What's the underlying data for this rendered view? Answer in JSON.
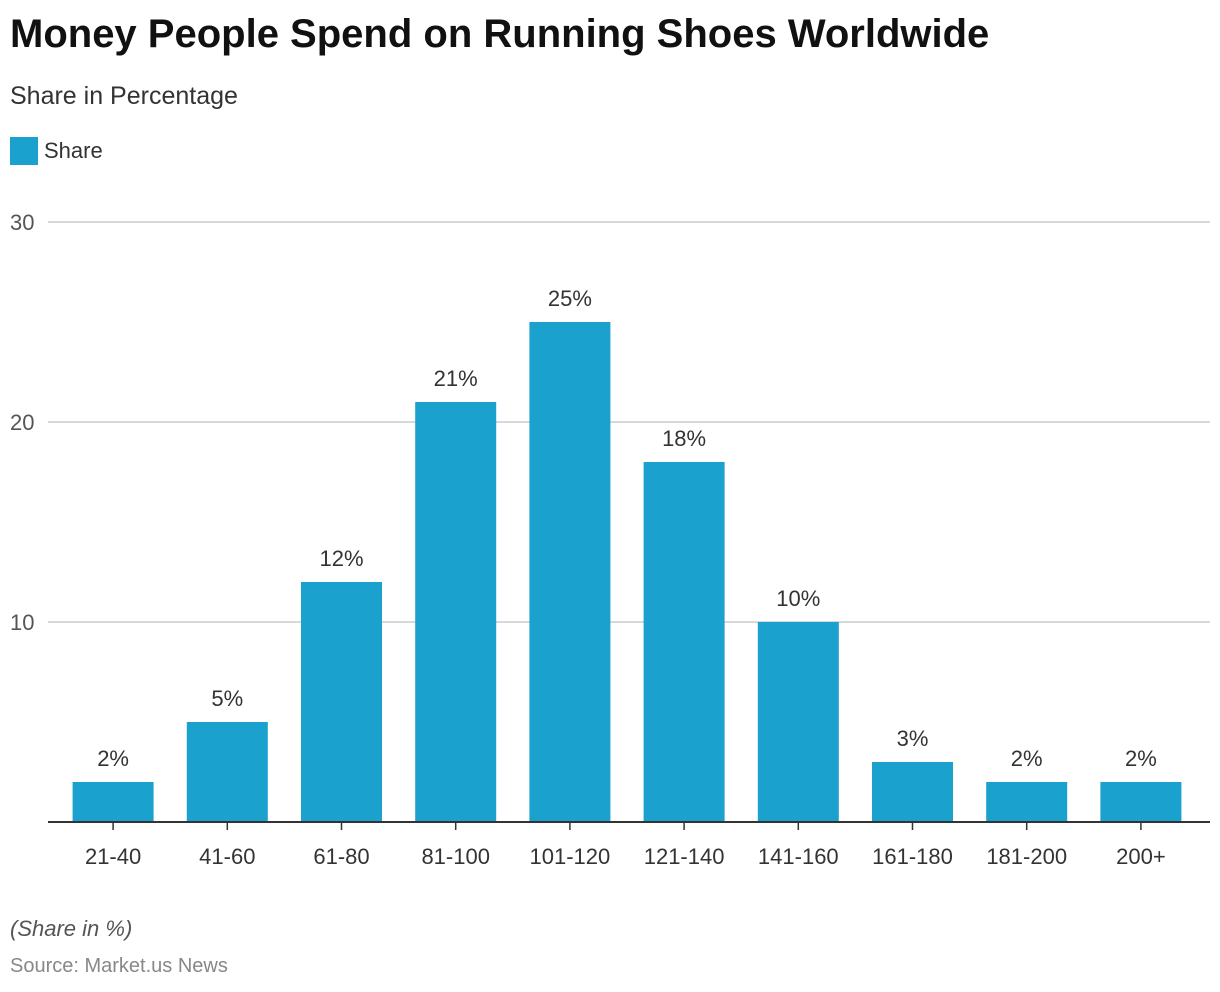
{
  "title": "Money People Spend on Running Shoes Worldwide",
  "subtitle": "Share in Percentage",
  "note": "(Share in %)",
  "source": "Source: Market.us News",
  "colors": {
    "bar": "#1aa1cd",
    "grid": "#cccccc",
    "axis": "#333333"
  },
  "chart_data": {
    "type": "bar",
    "title": "Money People Spend on Running Shoes Worldwide",
    "subtitle": "Share in Percentage",
    "categories": [
      "21-40",
      "41-60",
      "61-80",
      "81-100",
      "101-120",
      "121-140",
      "141-160",
      "161-180",
      "181-200",
      "200+"
    ],
    "series": [
      {
        "name": "Share",
        "values": [
          2,
          5,
          12,
          21,
          25,
          18,
          10,
          3,
          2,
          2
        ]
      }
    ],
    "data_labels": [
      "2%",
      "5%",
      "12%",
      "21%",
      "25%",
      "18%",
      "10%",
      "3%",
      "2%",
      "2%"
    ],
    "ylim": [
      0,
      30
    ],
    "yticks": [
      10,
      20,
      30
    ],
    "grid": true,
    "legend": "top-left"
  }
}
